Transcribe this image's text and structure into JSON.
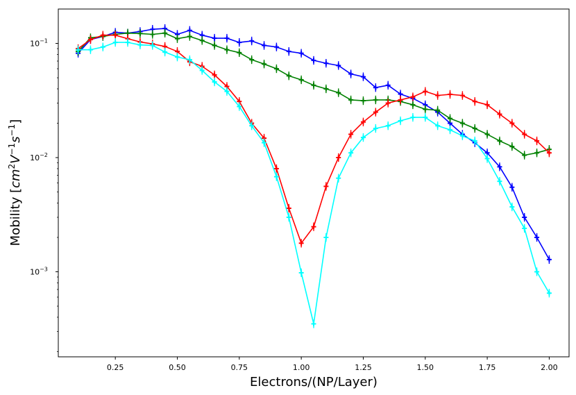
{
  "chart_data": {
    "type": "line",
    "title": "",
    "xlabel": "Electrons/(NP/Layer)",
    "ylabel_parts": {
      "prefix": "Mobility [",
      "cm": "cm",
      "cm_exp": "2",
      "V": "V",
      "V_exp": "−1",
      "s": "s",
      "s_exp": "−1",
      "suffix": "]"
    },
    "xlim": [
      0.02,
      2.08
    ],
    "ylim": [
      0.00018,
      0.2
    ],
    "yscale": "log",
    "x_ticks": [
      0.25,
      0.5,
      0.75,
      1.0,
      1.25,
      1.5,
      1.75,
      2.0
    ],
    "x_tick_labels": [
      "0.25",
      "0.50",
      "0.75",
      "1.00",
      "1.25",
      "1.50",
      "1.75",
      "2.00"
    ],
    "y_ticks": [
      0.1,
      0.01,
      0.001
    ],
    "y_tick_labels": [
      {
        "base": "10",
        "exp": "−1"
      },
      {
        "base": "10",
        "exp": "−2"
      },
      {
        "base": "10",
        "exp": "−3"
      }
    ],
    "x": [
      0.1,
      0.15,
      0.2,
      0.25,
      0.3,
      0.35,
      0.4,
      0.45,
      0.5,
      0.55,
      0.6,
      0.65,
      0.7,
      0.75,
      0.8,
      0.85,
      0.9,
      0.95,
      1.0,
      1.05,
      1.1,
      1.15,
      1.2,
      1.25,
      1.3,
      1.35,
      1.4,
      1.45,
      1.5,
      1.55,
      1.6,
      1.65,
      1.7,
      1.75,
      1.8,
      1.85,
      1.9,
      1.95,
      2.0
    ],
    "series": [
      {
        "name": "blue",
        "color": "#0000ff",
        "values": [
          0.082,
          0.108,
          0.115,
          0.125,
          0.123,
          0.127,
          0.133,
          0.135,
          0.12,
          0.13,
          0.118,
          0.111,
          0.111,
          0.102,
          0.105,
          0.096,
          0.093,
          0.085,
          0.082,
          0.071,
          0.067,
          0.064,
          0.054,
          0.051,
          0.041,
          0.043,
          0.036,
          0.033,
          0.029,
          0.025,
          0.02,
          0.016,
          0.0135,
          0.011,
          0.0083,
          0.0055,
          0.003,
          0.002,
          0.00128
        ]
      },
      {
        "name": "green",
        "color": "#008000",
        "values": [
          0.085,
          0.112,
          0.115,
          0.12,
          0.123,
          0.122,
          0.12,
          0.123,
          0.11,
          0.115,
          0.106,
          0.096,
          0.088,
          0.083,
          0.072,
          0.066,
          0.06,
          0.052,
          0.048,
          0.043,
          0.04,
          0.037,
          0.032,
          0.0315,
          0.032,
          0.032,
          0.031,
          0.029,
          0.0265,
          0.026,
          0.022,
          0.02,
          0.018,
          0.016,
          0.014,
          0.0125,
          0.0105,
          0.011,
          0.0118
        ]
      },
      {
        "name": "red",
        "color": "#ff0000",
        "values": [
          0.09,
          0.108,
          0.118,
          0.118,
          0.11,
          0.103,
          0.099,
          0.094,
          0.085,
          0.069,
          0.063,
          0.053,
          0.042,
          0.031,
          0.02,
          0.0148,
          0.008,
          0.0036,
          0.00178,
          0.00248,
          0.0056,
          0.01,
          0.016,
          0.0205,
          0.025,
          0.03,
          0.032,
          0.034,
          0.038,
          0.035,
          0.0358,
          0.035,
          0.031,
          0.029,
          0.024,
          0.02,
          0.016,
          0.014,
          0.011
        ]
      },
      {
        "name": "cyan",
        "color": "#00ffff",
        "values": [
          0.088,
          0.088,
          0.093,
          0.102,
          0.102,
          0.097,
          0.096,
          0.084,
          0.076,
          0.072,
          0.058,
          0.046,
          0.038,
          0.028,
          0.019,
          0.0135,
          0.0068,
          0.003,
          0.00098,
          0.00035,
          0.002,
          0.0066,
          0.011,
          0.015,
          0.018,
          0.019,
          0.021,
          0.0225,
          0.0225,
          0.019,
          0.0175,
          0.0155,
          0.014,
          0.0098,
          0.0062,
          0.0037,
          0.0024,
          0.001,
          0.00065
        ]
      }
    ]
  }
}
